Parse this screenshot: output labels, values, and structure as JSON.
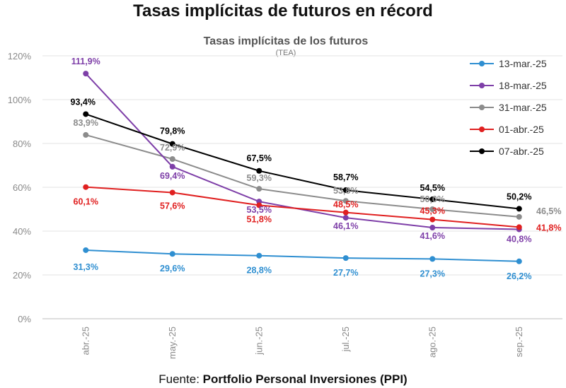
{
  "headline": "Tasas implícitas de futuros en récord",
  "source": {
    "prefix": "Fuente: ",
    "name": "Portfolio Personal Inversiones (PPI)"
  },
  "chart_data": {
    "type": "line",
    "title": "Tasas implícitas de los futuros",
    "subtitle": "(TEA)",
    "xlabel": "",
    "ylabel": "",
    "categories": [
      "abr.-25",
      "may.-25",
      "jun.-25",
      "jul.-25",
      "ago.-25",
      "sep.-25"
    ],
    "ylim": [
      0,
      120
    ],
    "yticks": [
      0,
      20,
      40,
      60,
      80,
      100,
      120
    ],
    "ytick_labels": [
      "0%",
      "20%",
      "40%",
      "60%",
      "80%",
      "100%",
      "120%"
    ],
    "grid": "horizontal",
    "legend_position": "top-right",
    "series": [
      {
        "name": "13-mar.-25",
        "color": "#2f8fd1",
        "values": [
          31.3,
          29.6,
          28.8,
          27.7,
          27.3,
          26.2
        ],
        "labels": [
          "31,3%",
          "29,6%",
          "28,8%",
          "27,7%",
          "27,3%",
          "26,2%"
        ]
      },
      {
        "name": "18-mar.-25",
        "color": "#7e3fa8",
        "values": [
          111.9,
          69.4,
          53.5,
          46.1,
          41.6,
          40.8
        ],
        "labels": [
          "111,9%",
          "69,4%",
          "53,5%",
          "46,1%",
          "41,6%",
          "40,8%"
        ]
      },
      {
        "name": "31-mar.-25",
        "color": "#8c8c8c",
        "values": [
          83.9,
          72.9,
          59.3,
          53.8,
          50.0,
          46.5
        ],
        "labels": [
          "83,9%",
          "72,9%",
          "59,3%",
          "53,8%",
          "50,0%",
          "46,5%"
        ]
      },
      {
        "name": "01-abr.-25",
        "color": "#e02020",
        "values": [
          60.1,
          57.6,
          51.8,
          48.5,
          45.3,
          41.8
        ],
        "labels": [
          "60,1%",
          "57,6%",
          "51,8%",
          "48,5%",
          "45,3%",
          "41,8%"
        ]
      },
      {
        "name": "07-abr.-25",
        "color": "#000000",
        "values": [
          93.4,
          79.8,
          67.5,
          58.7,
          54.5,
          50.2
        ],
        "labels": [
          "93,4%",
          "79,8%",
          "67,5%",
          "58,7%",
          "54,5%",
          "50,2%"
        ]
      }
    ]
  }
}
